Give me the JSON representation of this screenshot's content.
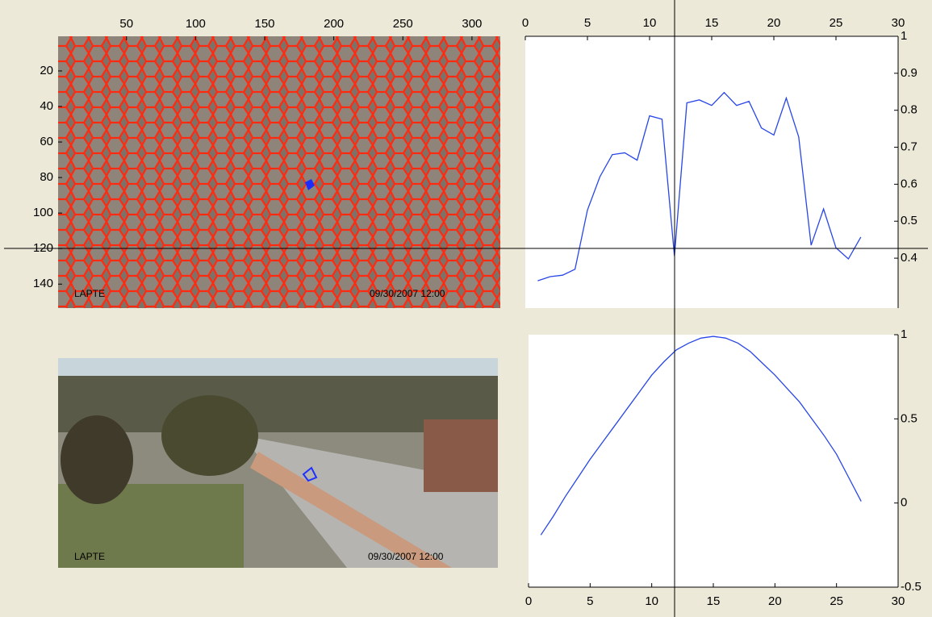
{
  "chart_data": [
    {
      "type": "image",
      "xlim": [
        0.5,
        320.5
      ],
      "ylim": [
        0.5,
        153.5
      ],
      "xticks": [
        50,
        100,
        150,
        200,
        250,
        300
      ],
      "yticks": [
        20,
        40,
        60,
        80,
        100,
        120,
        140
      ],
      "label": "LAPTE",
      "timestamp": "09/30/2007 12:00"
    },
    {
      "type": "line",
      "xaxis": "top",
      "color": "#2846e6",
      "x": [
        1,
        2,
        3,
        4,
        5,
        6,
        7,
        8,
        9,
        10,
        11,
        12,
        13,
        14,
        15,
        16,
        17,
        18,
        19,
        20,
        21,
        22,
        23,
        24,
        25,
        26,
        27
      ],
      "values": [
        0.339,
        0.35,
        0.354,
        0.37,
        0.53,
        0.62,
        0.68,
        0.685,
        0.665,
        0.785,
        0.776,
        0.406,
        0.82,
        0.828,
        0.813,
        0.848,
        0.813,
        0.824,
        0.752,
        0.733,
        0.833,
        0.728,
        0.435,
        0.533,
        0.428,
        0.398,
        0.457
      ],
      "xlim": [
        0,
        30
      ],
      "ylim": [
        0.265,
        1
      ],
      "xticks": [
        0,
        5,
        10,
        15,
        20,
        25,
        30
      ],
      "yticks": [
        0.4,
        0.5,
        0.6,
        0.7,
        0.8,
        0.9,
        1
      ]
    },
    {
      "type": "line",
      "xaxis": "bottom",
      "color": "#2846e6",
      "x": [
        1,
        2,
        3,
        4,
        5,
        6,
        7,
        8,
        9,
        10,
        11,
        12,
        13,
        14,
        15,
        16,
        17,
        18,
        19,
        20,
        21,
        22,
        23,
        24,
        25,
        26,
        27
      ],
      "values": [
        -0.19,
        -0.08,
        0.04,
        0.15,
        0.26,
        0.36,
        0.46,
        0.56,
        0.66,
        0.76,
        0.84,
        0.91,
        0.95,
        0.98,
        0.99,
        0.98,
        0.95,
        0.9,
        0.83,
        0.76,
        0.68,
        0.6,
        0.5,
        0.4,
        0.29,
        0.15,
        0.01
      ],
      "xlim": [
        0,
        30
      ],
      "ylim": [
        -0.5,
        1
      ],
      "xticks": [
        0,
        5,
        10,
        15,
        20,
        25,
        30
      ],
      "yticks": [
        -0.5,
        0,
        0.5,
        1
      ]
    }
  ],
  "photo": {
    "label": "LAPTE",
    "timestamp": "09/30/2007 12:00"
  }
}
